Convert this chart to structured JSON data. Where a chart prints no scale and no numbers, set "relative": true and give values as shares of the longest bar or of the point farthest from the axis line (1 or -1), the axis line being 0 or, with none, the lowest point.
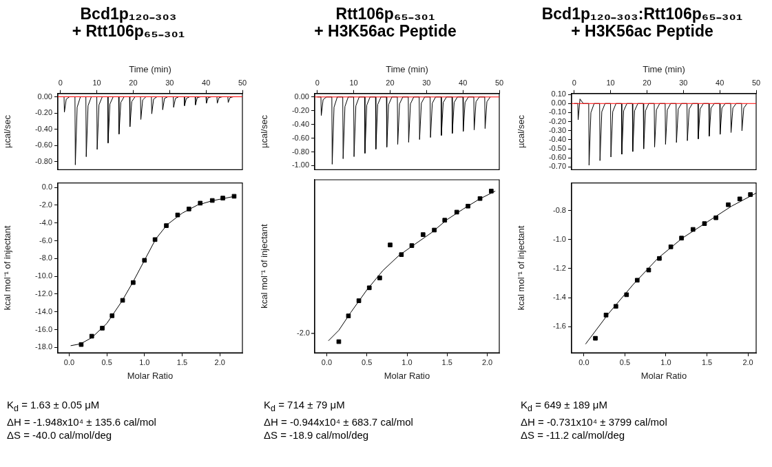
{
  "chart_data": [
    {
      "type": "line",
      "title": "Bcd1p₁₂₀₋₃₀₃\n+ Rtt106p₆₅₋₃₀₁",
      "xlabel": "Time (min)",
      "ylabel": "µcal/sec",
      "marker": "none",
      "xlim": [
        -0.7,
        50
      ],
      "xticks": [
        0,
        10,
        20,
        30,
        40,
        50
      ],
      "ylim": [
        -0.9,
        0.04
      ],
      "yticks": [
        {
          "value": 0,
          "label": "0.00"
        },
        {
          "value": -0.2,
          "label": "-0.20"
        },
        {
          "value": -0.4,
          "label": "-0.40"
        },
        {
          "value": -0.6,
          "label": "-0.60"
        },
        {
          "value": -0.8,
          "label": "-0.80"
        }
      ],
      "ref_lines": [
        {
          "axis": "y",
          "value": 0,
          "color": "#ff0000"
        }
      ],
      "x": [
        0,
        1,
        1.1,
        1.6,
        2.5,
        4,
        4.1,
        4.6,
        5.5,
        7,
        7.1,
        7.6,
        8.5,
        10,
        10.1,
        10.6,
        11.5,
        13,
        13.1,
        13.6,
        14.5,
        16,
        16.1,
        16.6,
        17.5,
        19,
        19.1,
        19.6,
        20.5,
        22,
        22.1,
        22.6,
        23.5,
        25,
        25.1,
        25.6,
        26.5,
        28,
        28.1,
        28.6,
        29.5,
        31,
        31.1,
        31.6,
        32.5,
        34,
        34.1,
        34.6,
        35.5,
        37,
        37.1,
        37.6,
        38.5,
        40,
        40.1,
        40.6,
        41.5,
        43,
        43.1,
        43.6,
        44.5,
        46,
        46.1,
        46.6,
        47.5
      ],
      "series": [
        {
          "color": "#000000",
          "values": [
            0,
            0,
            -0.19,
            -0.03,
            0,
            0,
            -0.84,
            -0.13,
            0,
            0,
            -0.74,
            -0.11,
            0,
            0,
            -0.65,
            -0.1,
            0,
            0,
            -0.57,
            -0.09,
            0,
            0,
            -0.46,
            -0.07,
            0,
            0,
            -0.37,
            -0.06,
            0,
            0,
            -0.28,
            -0.04,
            0,
            0,
            -0.21,
            -0.03,
            0,
            0,
            -0.16,
            -0.02,
            0,
            0,
            -0.13,
            -0.02,
            0,
            0,
            -0.11,
            -0.02,
            0,
            0,
            -0.1,
            -0.01,
            0,
            0,
            -0.08,
            -0.01,
            0,
            0,
            -0.08,
            -0.01,
            0,
            0,
            -0.07,
            -0.01,
            0
          ]
        }
      ]
    },
    {
      "type": "scatter",
      "xlabel": "Molar Ratio",
      "ylabel": "kcal mol⁻¹ of injectant",
      "marker": "square",
      "xlim": [
        -0.15,
        2.3
      ],
      "xticks": [
        {
          "value": 0,
          "label": "0.0"
        },
        {
          "value": 0.5,
          "label": "0.5"
        },
        {
          "value": 1,
          "label": "1.0"
        },
        {
          "value": 1.5,
          "label": "1.5"
        },
        {
          "value": 2,
          "label": "2.0"
        }
      ],
      "ylim": [
        -18.6,
        0.5
      ],
      "yticks": [
        {
          "value": 0,
          "label": "0.0"
        },
        {
          "value": -2,
          "label": "-2.0"
        },
        {
          "value": -4,
          "label": "-4.0"
        },
        {
          "value": -6,
          "label": "-6.0"
        },
        {
          "value": -8,
          "label": "-8.0"
        },
        {
          "value": -10,
          "label": "-10.0"
        },
        {
          "value": -12,
          "label": "-12.0"
        },
        {
          "value": -14,
          "label": "-14.0"
        },
        {
          "value": -16,
          "label": "-16.0"
        },
        {
          "value": -18,
          "label": "-18.0"
        }
      ],
      "x": [
        0.16,
        0.3,
        0.44,
        0.57,
        0.71,
        0.85,
        1.0,
        1.14,
        1.29,
        1.44,
        1.59,
        1.74,
        1.9,
        2.04,
        2.19
      ],
      "series": [
        {
          "color": "#000000",
          "values": [
            -17.67,
            -16.73,
            -15.83,
            -14.43,
            -12.7,
            -10.7,
            -8.2,
            -5.87,
            -4.3,
            -3.1,
            -2.43,
            -1.77,
            -1.47,
            -1.2,
            -1.0
          ]
        },
        {
          "type": "line",
          "marker": "none",
          "color": "#000000",
          "x": [
            0.02,
            0.15,
            0.3,
            0.5,
            0.7,
            0.85,
            1.0,
            1.15,
            1.3,
            1.5,
            1.7,
            1.9,
            2.2
          ],
          "values": [
            -17.8,
            -17.6,
            -16.9,
            -15.3,
            -12.8,
            -10.6,
            -8.2,
            -5.8,
            -4.2,
            -2.9,
            -2.0,
            -1.5,
            -1.0
          ]
        }
      ],
      "annotations": [
        "K$_{d}$ = 1.63  ± 0.05 μM",
        "ΔH = -1.948x10⁴ ± 135.6 cal/mol",
        "ΔS = -40.0 cal/mol/deg"
      ]
    },
    {
      "type": "line",
      "title": "Rtt106p₆₅₋₃₀₁\n+  H3K56ac Peptide",
      "xlabel": "Time (min)",
      "ylabel": "µcal/sec",
      "marker": "none",
      "xlim": [
        -0.7,
        50
      ],
      "xticks": [
        0,
        10,
        20,
        30,
        40,
        50
      ],
      "ylim": [
        -1.06,
        0.05
      ],
      "yticks": [
        {
          "value": 0,
          "label": "0.00"
        },
        {
          "value": -0.2,
          "label": "-0.20"
        },
        {
          "value": -0.4,
          "label": "-0.40"
        },
        {
          "value": -0.6,
          "label": "-0.60"
        },
        {
          "value": -0.8,
          "label": "-0.80"
        },
        {
          "value": -1,
          "label": "-1.00"
        }
      ],
      "ref_lines": [
        {
          "axis": "y",
          "value": 0,
          "color": "#ff0000"
        }
      ],
      "x": [
        0,
        1,
        1.1,
        1.6,
        2.5,
        4,
        4.1,
        4.6,
        5.5,
        7,
        7.1,
        7.6,
        8.5,
        10,
        10.1,
        10.6,
        11.5,
        13,
        13.1,
        13.6,
        14.5,
        16,
        16.1,
        16.6,
        17.5,
        19,
        19.1,
        19.6,
        20.5,
        22,
        22.1,
        22.6,
        23.5,
        25,
        25.1,
        25.6,
        26.5,
        28,
        28.1,
        28.6,
        29.5,
        31,
        31.1,
        31.6,
        32.5,
        34,
        34.1,
        34.6,
        35.5,
        37,
        37.1,
        37.6,
        38.5,
        40,
        40.1,
        40.6,
        41.5,
        43,
        43.1,
        43.6,
        44.5,
        46,
        46.1,
        46.6,
        47.5
      ],
      "series": [
        {
          "color": "#000000",
          "values": [
            0,
            0,
            -0.27,
            -0.04,
            0,
            0,
            -0.98,
            -0.15,
            0,
            0,
            -0.9,
            -0.14,
            0,
            0,
            -0.87,
            -0.13,
            0,
            0,
            -0.82,
            -0.12,
            0,
            0,
            -0.76,
            -0.11,
            0,
            0,
            -0.73,
            -0.11,
            0,
            0,
            -0.69,
            -0.1,
            0,
            0,
            -0.66,
            -0.1,
            0,
            0,
            -0.62,
            -0.09,
            0,
            0,
            -0.59,
            -0.09,
            0,
            0,
            -0.56,
            -0.08,
            0,
            0,
            -0.53,
            -0.08,
            0,
            0,
            -0.5,
            -0.08,
            0,
            0,
            -0.48,
            -0.07,
            0,
            0,
            -0.46,
            -0.07,
            0
          ]
        }
      ]
    },
    {
      "type": "scatter",
      "xlabel": "Molar Ratio",
      "ylabel": "kcal mol⁻¹ of injectant",
      "marker": "square",
      "relative": true,
      "xlim": [
        -0.15,
        2.15
      ],
      "xticks": [
        {
          "value": 0,
          "label": "0.0"
        },
        {
          "value": 0.5,
          "label": "0.5"
        },
        {
          "value": 1,
          "label": "1.0"
        },
        {
          "value": 1.5,
          "label": "1.5"
        },
        {
          "value": 2,
          "label": "2.0"
        }
      ],
      "x": [
        0.15,
        0.27,
        0.4,
        0.53,
        0.66,
        0.79,
        0.93,
        1.06,
        1.2,
        1.34,
        1.47,
        1.62,
        1.76,
        1.91,
        2.05
      ],
      "series": [
        {
          "color": "#000000",
          "values": [
            0.069,
            0.228,
            0.322,
            0.402,
            0.463,
            0.667,
            0.607,
            0.663,
            0.731,
            0.759,
            0.82,
            0.87,
            0.907,
            0.954,
            1
          ]
        },
        {
          "type": "line",
          "marker": "none",
          "color": "#000000",
          "x": [
            0.02,
            0.15,
            0.3,
            0.5,
            0.7,
            0.9,
            1.1,
            1.3,
            1.5,
            1.7,
            1.9,
            2.1
          ],
          "values": [
            0.074,
            0.139,
            0.25,
            0.389,
            0.509,
            0.602,
            0.672,
            0.741,
            0.824,
            0.889,
            0.95,
            1.0
          ]
        }
      ],
      "annotations": [
        "-2.0",
        "K$_{d}$ = 714  ± 79 μM",
        "ΔH = -0.944x10⁴ ± 683.7 cal/mol",
        "ΔS = -18.9 cal/mol/deg"
      ]
    },
    {
      "type": "line",
      "title": "Bcd1p₁₂₀₋₃₀₃:Rtt106p₆₅₋₃₀₁\n+ H3K56ac Peptide",
      "xlabel": "Time (min)",
      "ylabel": "µcal/sec",
      "marker": "none",
      "xlim": [
        -0.7,
        50
      ],
      "xticks": [
        0,
        10,
        20,
        30,
        40,
        50
      ],
      "ylim": [
        -0.73,
        0.11
      ],
      "yticks": [
        {
          "value": 0.1,
          "label": "0.10"
        },
        {
          "value": 0,
          "label": "0.00"
        },
        {
          "value": -0.1,
          "label": "-0.10"
        },
        {
          "value": -0.2,
          "label": "-0.20"
        },
        {
          "value": -0.3,
          "label": "-0.30"
        },
        {
          "value": -0.4,
          "label": "-0.40"
        },
        {
          "value": -0.5,
          "label": "-0.50"
        },
        {
          "value": -0.6,
          "label": "-0.60"
        },
        {
          "value": -0.7,
          "label": "-0.70"
        }
      ],
      "ref_lines": [
        {
          "axis": "y",
          "value": 0,
          "color": "#ff0000"
        }
      ],
      "x": [
        0,
        1,
        1.1,
        1.6,
        2.5,
        4,
        4.1,
        4.6,
        5.5,
        7,
        7.1,
        7.6,
        8.5,
        10,
        10.1,
        10.6,
        11.5,
        13,
        13.1,
        13.6,
        14.5,
        16,
        16.1,
        16.6,
        17.5,
        19,
        19.1,
        19.6,
        20.5,
        22,
        22.1,
        22.6,
        23.5,
        25,
        25.1,
        25.6,
        26.5,
        28,
        28.1,
        28.6,
        29.5,
        31,
        31.1,
        31.6,
        32.5,
        34,
        34.1,
        34.6,
        35.5,
        37,
        37.1,
        37.6,
        38.5,
        40,
        40.1,
        40.6,
        41.5,
        43,
        43.1,
        43.6,
        44.5,
        46,
        46.1,
        46.6,
        47.5
      ],
      "series": [
        {
          "color": "#000000",
          "values": [
            0,
            0,
            -0.18,
            0.05,
            0,
            0,
            -0.68,
            -0.1,
            0,
            0,
            -0.63,
            -0.09,
            0,
            0,
            -0.59,
            -0.09,
            0,
            0,
            -0.56,
            -0.08,
            0,
            0,
            -0.53,
            -0.08,
            0,
            0,
            -0.5,
            -0.08,
            0,
            0,
            -0.48,
            -0.07,
            0,
            0,
            -0.45,
            -0.07,
            0,
            0,
            -0.43,
            -0.06,
            0,
            0,
            -0.41,
            -0.06,
            0,
            0,
            -0.39,
            -0.06,
            0,
            0,
            -0.36,
            -0.05,
            0,
            0,
            -0.34,
            -0.05,
            0,
            0,
            -0.32,
            -0.05,
            0,
            0,
            -0.3,
            -0.05,
            0
          ]
        }
      ]
    },
    {
      "type": "scatter",
      "xlabel": "Molar Ratio",
      "ylabel": "kcal mol⁻¹ of injectant",
      "marker": "square",
      "xlim": [
        -0.15,
        2.1
      ],
      "xticks": [
        {
          "value": 0,
          "label": "0.0"
        },
        {
          "value": 0.5,
          "label": "0.5"
        },
        {
          "value": 1,
          "label": "1.0"
        },
        {
          "value": 1.5,
          "label": "1.5"
        },
        {
          "value": 2,
          "label": "2.0"
        }
      ],
      "ylim": [
        -1.78,
        -0.61
      ],
      "yticks": [
        {
          "value": -0.8,
          "label": "-0.8"
        },
        {
          "value": -1,
          "label": "-1.0"
        },
        {
          "value": -1.2,
          "label": "-1.2"
        },
        {
          "value": -1.4,
          "label": "-1.4"
        },
        {
          "value": -1.6,
          "label": "-1.6"
        }
      ],
      "x": [
        0.14,
        0.27,
        0.39,
        0.52,
        0.65,
        0.79,
        0.92,
        1.06,
        1.19,
        1.33,
        1.47,
        1.61,
        1.76,
        1.9,
        2.03
      ],
      "series": [
        {
          "color": "#000000",
          "values": [
            -1.68,
            -1.52,
            -1.46,
            -1.38,
            -1.28,
            -1.21,
            -1.13,
            -1.05,
            -0.99,
            -0.93,
            -0.89,
            -0.85,
            -0.76,
            -0.72,
            -0.69
          ]
        },
        {
          "type": "line",
          "marker": "none",
          "color": "#000000",
          "x": [
            0.02,
            0.3,
            0.6,
            0.9,
            1.2,
            1.5,
            1.8,
            2.1
          ],
          "values": [
            -1.72,
            -1.51,
            -1.31,
            -1.13,
            -0.99,
            -0.88,
            -0.77,
            -0.68
          ]
        }
      ],
      "annotations": [
        "K$_{d}$ = 649  ± 189 μM",
        "ΔH = -0.731x10⁴ ± 3799 cal/mol",
        "ΔS = -11.2 cal/mol/deg"
      ]
    }
  ]
}
